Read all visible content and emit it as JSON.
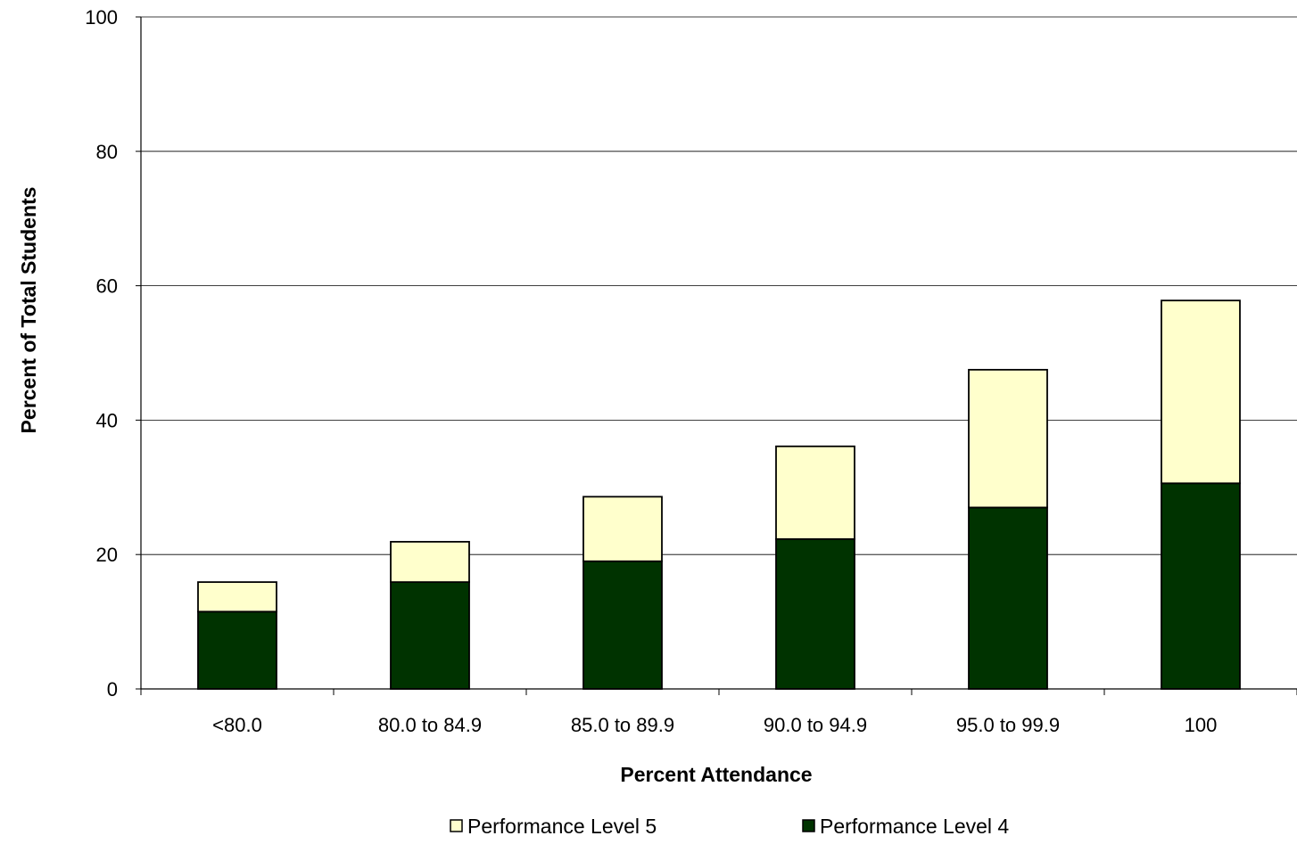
{
  "chart_data": {
    "type": "bar",
    "stacked": true,
    "title": "",
    "xlabel": "Percent Attendance",
    "ylabel": "Percent of Total Students",
    "ylim": [
      0,
      100
    ],
    "yticks": [
      "0",
      "20",
      "40",
      "60",
      "80",
      "100"
    ],
    "categories": [
      "<80.0",
      "80.0 to 84.9",
      "85.0 to 89.9",
      "90.0 to 94.9",
      "95.0 to 99.9",
      "100"
    ],
    "series": [
      {
        "name": "Performance Level 4",
        "color": "#003300",
        "values": [
          11.5,
          15.9,
          19.0,
          22.3,
          27.0,
          30.6
        ]
      },
      {
        "name": "Performance Level 5",
        "color": "#FFFFCC",
        "values": [
          4.4,
          6.0,
          9.6,
          13.8,
          20.5,
          27.2
        ]
      }
    ],
    "legend": {
      "position": "bottom",
      "entries": [
        "Performance Level 5",
        "Performance Level 4"
      ]
    },
    "grid": true
  }
}
